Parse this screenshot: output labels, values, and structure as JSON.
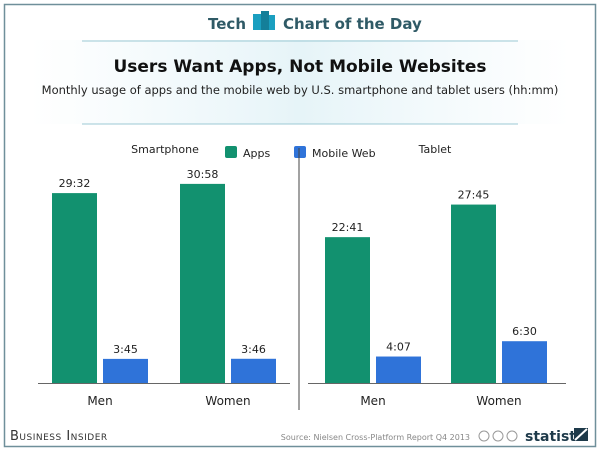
{
  "header": {
    "left": "Tech",
    "right": "Chart of the Day"
  },
  "footer": {
    "publisher": "Business Insider",
    "source": "Source: Nielsen Cross-Platform Report Q4 2013",
    "brand": "statista"
  },
  "colors": {
    "apps": "#12916f",
    "web": "#2f73d9",
    "frame": "#6f8f9a",
    "accent": "#1a9fc0"
  },
  "chart_data": {
    "type": "bar",
    "title": "Users Want Apps, Not Mobile Websites",
    "subtitle": "Monthly usage of apps and the mobile web by U.S. smartphone and tablet users (hh:mm)",
    "legend": {
      "position": "top",
      "entries": [
        "Apps",
        "Mobile Web"
      ]
    },
    "unit": "minutes",
    "grid": false,
    "panels": [
      {
        "title": "Smartphone",
        "categories": [
          "Men",
          "Women"
        ],
        "series": [
          {
            "name": "Apps",
            "values": [
              1772,
              1858
            ],
            "labels": [
              "29:32",
              "30:58"
            ]
          },
          {
            "name": "Mobile Web",
            "values": [
              225,
              226
            ],
            "labels": [
              "3:45",
              "3:46"
            ]
          }
        ]
      },
      {
        "title": "Tablet",
        "categories": [
          "Men",
          "Women"
        ],
        "series": [
          {
            "name": "Apps",
            "values": [
              1361,
              1665
            ],
            "labels": [
              "22:41",
              "27:45"
            ]
          },
          {
            "name": "Mobile Web",
            "values": [
              247,
              390
            ],
            "labels": [
              "4:07",
              "6:30"
            ]
          }
        ]
      }
    ]
  }
}
